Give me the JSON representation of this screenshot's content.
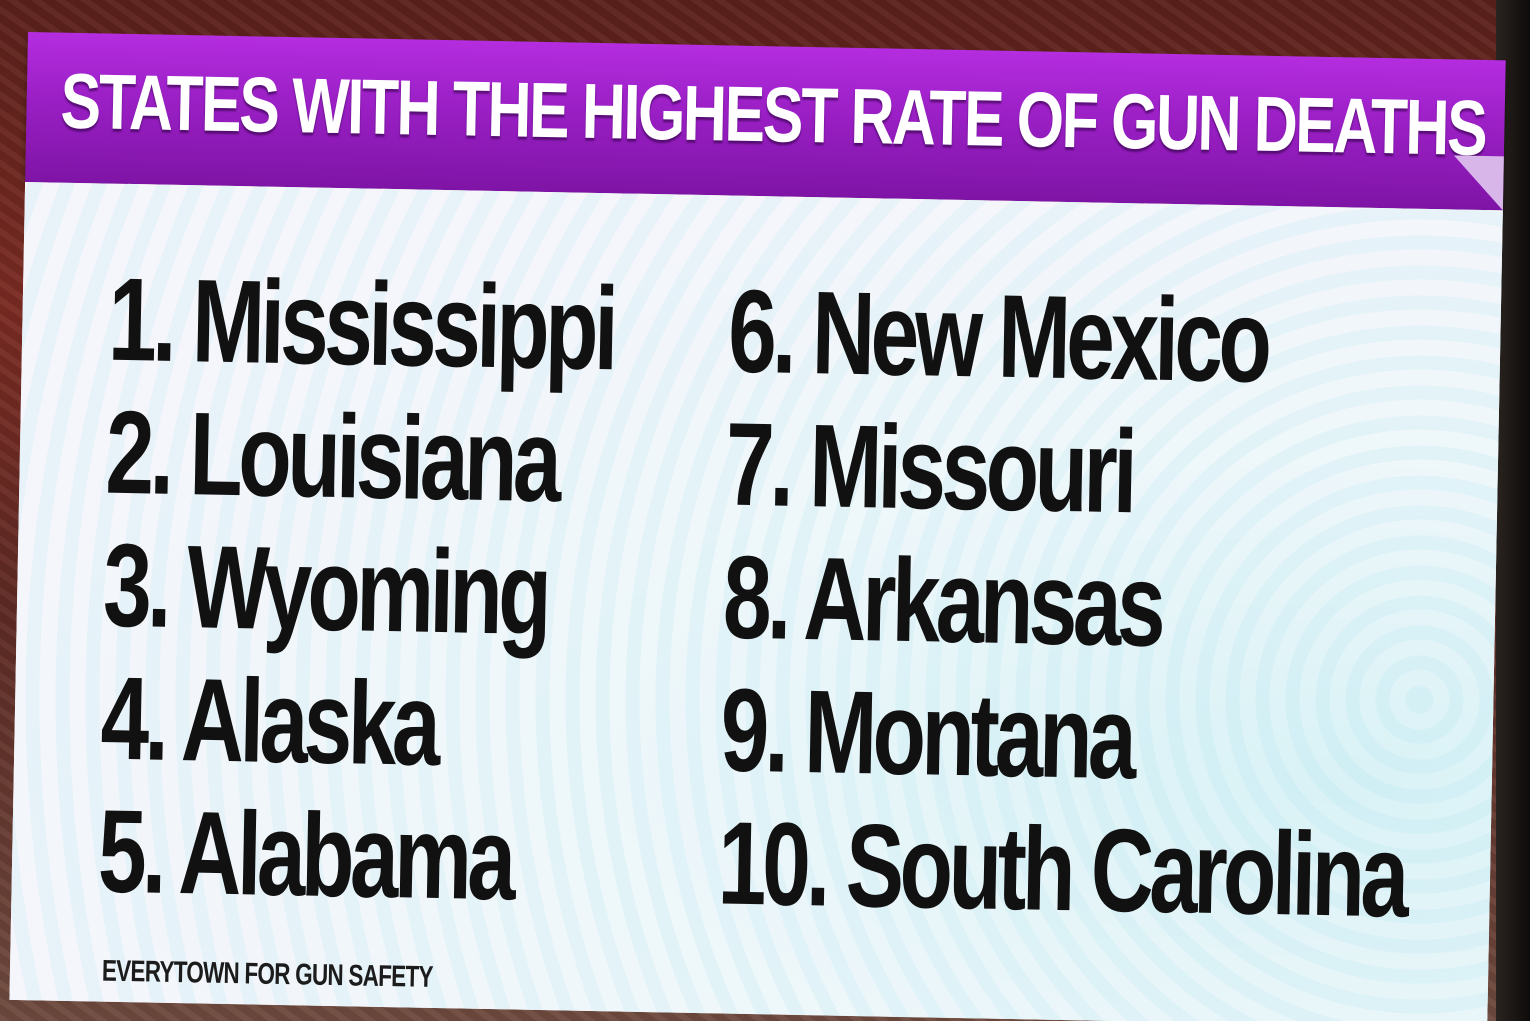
{
  "graphic": {
    "title": "STATES WITH THE HIGHEST RATE OF GUN DEATHS",
    "left_column": [
      "1. Mississippi",
      "2. Louisiana",
      "3. Wyoming",
      "4. Alaska",
      "5. Alabama"
    ],
    "right_column": [
      "6. New Mexico",
      "7. Missouri",
      "8. Arkansas",
      "9. Montana",
      "10. South Carolina"
    ],
    "source": "EVERYTOWN FOR GUN SAFETY"
  },
  "colors": {
    "banner": "#9a1fc4",
    "banner_text": "#ffffff",
    "board": "#f2f4f8",
    "list_text": "#111111"
  }
}
